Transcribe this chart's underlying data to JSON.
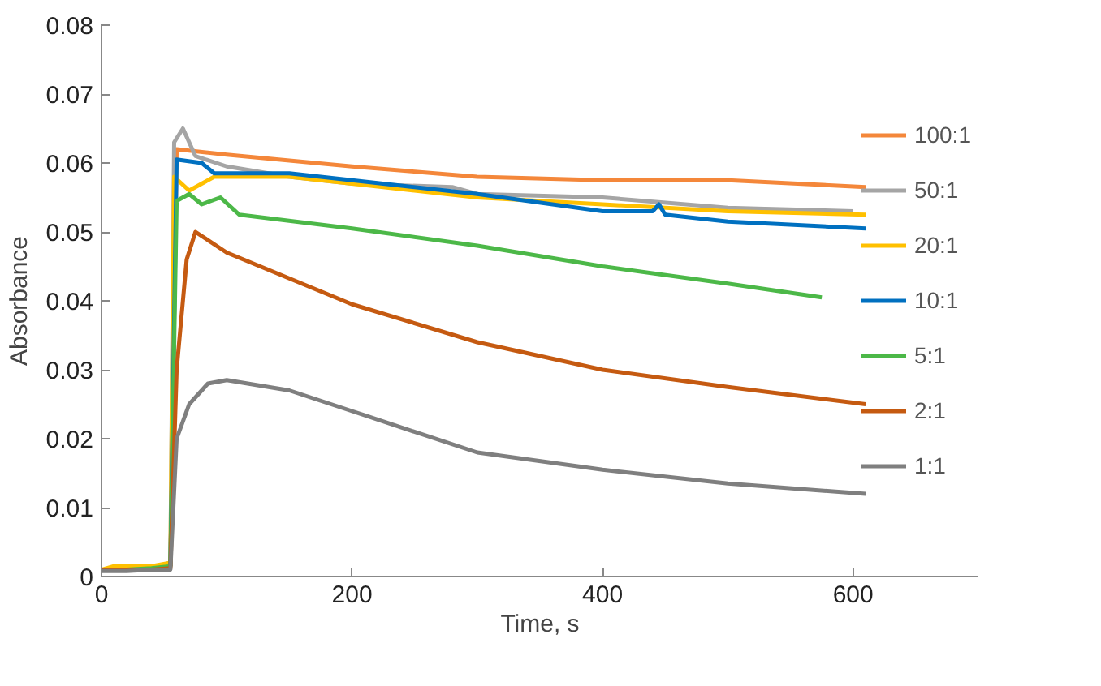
{
  "chart_data": {
    "type": "line",
    "xlabel": "Time, s",
    "ylabel": "Absorbance",
    "xlim": [
      0,
      700
    ],
    "ylim": [
      0,
      0.08
    ],
    "xticks": [
      0,
      200,
      400,
      600
    ],
    "yticks": [
      0,
      0.01,
      0.02,
      0.03,
      0.04,
      0.05,
      0.06,
      0.07,
      0.08
    ],
    "grid": false,
    "legend": "right",
    "marker": "none",
    "line_style": "solid",
    "series": [
      {
        "name": "100:1",
        "color": "#f4873a",
        "x": [
          55,
          60,
          70,
          100,
          200,
          300,
          400,
          500,
          610
        ],
        "values": [
          0.0015,
          0.062,
          0.0618,
          0.0612,
          0.0595,
          0.058,
          0.0575,
          0.0575,
          0.0565
        ]
      },
      {
        "name": "50:1",
        "color": "#a5a5a5",
        "x": [
          0,
          20,
          40,
          55,
          58,
          65,
          75,
          100,
          150,
          200,
          280,
          300,
          400,
          500,
          600
        ],
        "values": [
          0.001,
          0.001,
          0.0012,
          0.002,
          0.063,
          0.065,
          0.061,
          0.0595,
          0.058,
          0.057,
          0.0565,
          0.0555,
          0.055,
          0.0535,
          0.053
        ]
      },
      {
        "name": "20:1",
        "color": "#ffc000",
        "x": [
          0,
          10,
          20,
          40,
          55,
          58,
          70,
          90,
          150,
          200,
          300,
          400,
          500,
          610
        ],
        "values": [
          0.001,
          0.0015,
          0.0015,
          0.0015,
          0.002,
          0.058,
          0.056,
          0.058,
          0.058,
          0.057,
          0.055,
          0.054,
          0.053,
          0.0525
        ]
      },
      {
        "name": "10:1",
        "color": "#0070c0",
        "x": [
          55,
          60,
          80,
          90,
          150,
          200,
          300,
          400,
          440,
          445,
          450,
          500,
          610
        ],
        "values": [
          0.0015,
          0.0605,
          0.06,
          0.0585,
          0.0585,
          0.0575,
          0.0555,
          0.053,
          0.053,
          0.054,
          0.0525,
          0.0515,
          0.0505
        ]
      },
      {
        "name": "5:1",
        "color": "#4cb848",
        "x": [
          0,
          20,
          40,
          55,
          60,
          70,
          80,
          95,
          110,
          200,
          300,
          400,
          500,
          575
        ],
        "values": [
          0.001,
          0.001,
          0.0012,
          0.0015,
          0.0545,
          0.0555,
          0.054,
          0.055,
          0.0525,
          0.0505,
          0.048,
          0.045,
          0.0425,
          0.0405
        ]
      },
      {
        "name": "2:1",
        "color": "#c55a11",
        "x": [
          0,
          20,
          40,
          55,
          60,
          68,
          75,
          100,
          200,
          300,
          400,
          500,
          610
        ],
        "values": [
          0.001,
          0.001,
          0.001,
          0.0012,
          0.03,
          0.046,
          0.05,
          0.047,
          0.0395,
          0.034,
          0.03,
          0.0275,
          0.025
        ]
      },
      {
        "name": "1:1",
        "color": "#7f7f7f",
        "x": [
          0,
          20,
          40,
          55,
          60,
          70,
          85,
          100,
          150,
          200,
          300,
          400,
          500,
          610
        ],
        "values": [
          0.0008,
          0.0008,
          0.001,
          0.001,
          0.02,
          0.025,
          0.028,
          0.0285,
          0.027,
          0.024,
          0.018,
          0.0155,
          0.0135,
          0.012
        ]
      }
    ]
  }
}
